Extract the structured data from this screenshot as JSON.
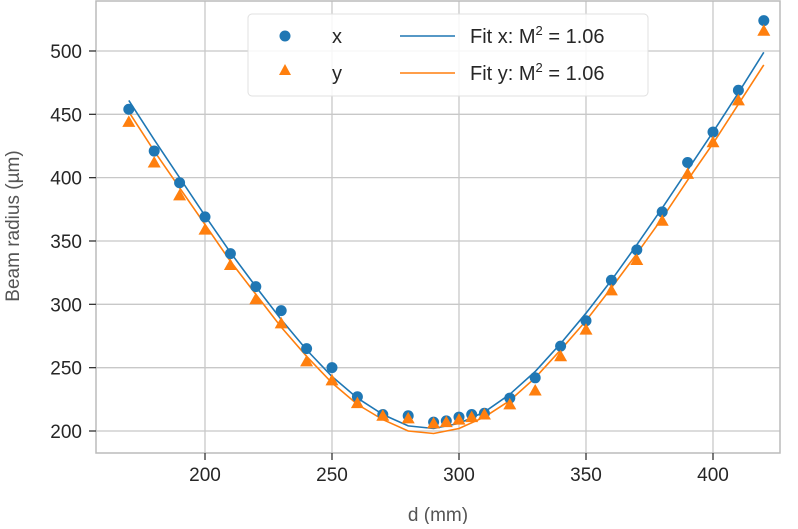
{
  "chart_data": {
    "type": "scatter",
    "title": "",
    "xlabel": "d (mm)",
    "ylabel": "Beam radius (µm)",
    "xlim": [
      162,
      432
    ],
    "ylim": [
      184,
      540
    ],
    "xticks": [
      "200",
      "250",
      "300",
      "350",
      "400"
    ],
    "yticks": [
      "200",
      "250",
      "300",
      "350",
      "400",
      "450",
      "500"
    ],
    "grid": true,
    "legend_position": "top-center",
    "x": [
      170,
      180,
      190,
      200,
      210,
      220,
      230,
      240,
      250,
      260,
      270,
      280,
      290,
      295,
      300,
      305,
      310,
      320,
      330,
      340,
      350,
      360,
      370,
      380,
      390,
      400,
      410,
      420
    ],
    "series": [
      {
        "name": "x",
        "marker": "circle",
        "color": "#1f77b4",
        "values": [
          454,
          421,
          396,
          369,
          340,
          314,
          295,
          265,
          250,
          227,
          213,
          212,
          207,
          208,
          211,
          213,
          214,
          226,
          242,
          267,
          287,
          319,
          343,
          373,
          412,
          436,
          469,
          524
        ]
      },
      {
        "name": "y",
        "marker": "triangle",
        "color": "#ff7f0e",
        "values": [
          444,
          412,
          386,
          359,
          331,
          304,
          285,
          255,
          240,
          222,
          212,
          210,
          206,
          207,
          209,
          211,
          213,
          221,
          232,
          259,
          280,
          311,
          335,
          366,
          403,
          428,
          461,
          516
        ]
      }
    ],
    "fits": [
      {
        "name": "Fit x: M² = 1.06",
        "label_prefix": "Fit x: M",
        "label_sup": "2",
        "label_suffix": " = 1.06",
        "color": "#1f77b4",
        "x": [
          170,
          180,
          190,
          200,
          210,
          220,
          230,
          240,
          250,
          260,
          270,
          280,
          290,
          300,
          310,
          320,
          330,
          340,
          350,
          360,
          370,
          380,
          390,
          400,
          410,
          420
        ],
        "values": [
          461,
          430,
          400,
          370,
          341,
          314,
          288,
          264,
          243,
          226,
          213,
          204,
          202,
          206,
          215,
          229,
          247,
          269,
          293,
          319,
          347,
          376,
          406,
          436,
          467,
          499
        ]
      },
      {
        "name": "Fit y: M² = 1.06",
        "label_prefix": "Fit y: M",
        "label_sup": "2",
        "label_suffix": " = 1.06",
        "color": "#ff7f0e",
        "x": [
          170,
          180,
          190,
          200,
          210,
          220,
          230,
          240,
          250,
          260,
          270,
          280,
          290,
          300,
          310,
          320,
          330,
          340,
          350,
          360,
          370,
          380,
          390,
          400,
          410,
          420
        ],
        "values": [
          452,
          421,
          392,
          363,
          334,
          308,
          282,
          259,
          238,
          221,
          209,
          200,
          198,
          202,
          211,
          224,
          242,
          264,
          287,
          313,
          340,
          368,
          398,
          427,
          458,
          489
        ]
      }
    ]
  }
}
